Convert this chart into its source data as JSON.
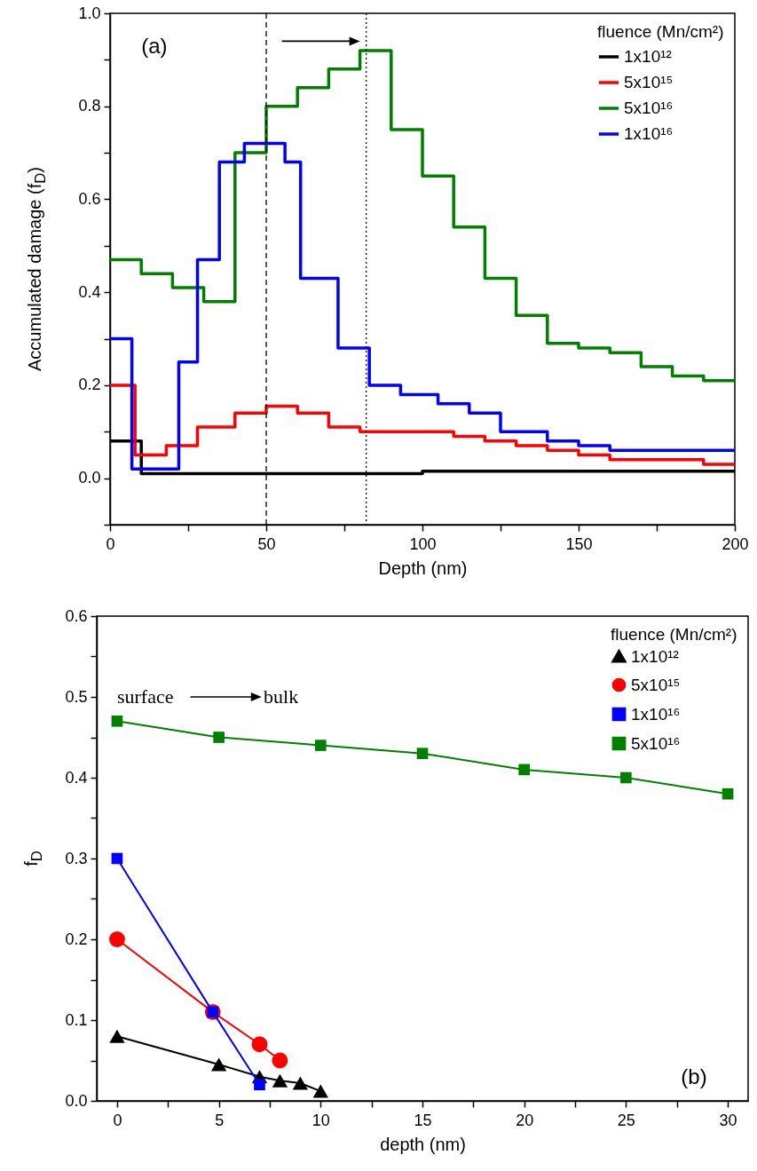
{
  "chart_data": [
    {
      "type": "step",
      "xlabel": "Depth (nm)",
      "ylabel": "Accumulated damage (f$_{D}$)",
      "legend_title": "fluence (Mn/cm²)",
      "legend": "top right",
      "xlim": [
        0,
        200
      ],
      "xticks": [
        0,
        {
          "value": 25,
          "label": null
        },
        50,
        {
          "value": 75,
          "label": null
        },
        100,
        {
          "value": 125,
          "label": null
        },
        150,
        {
          "value": 175,
          "label": null
        },
        200
      ],
      "ylim": [
        -0.1,
        1.0
      ],
      "yticks": [
        {
          "value": -0.1,
          "label": null
        },
        {
          "value": 0,
          "label": "0.0"
        },
        {
          "value": 0.1,
          "label": null
        },
        0.2,
        {
          "value": 0.3,
          "label": null
        },
        0.4,
        {
          "value": 0.5,
          "label": null
        },
        0.6,
        {
          "value": 0.7,
          "label": null
        },
        0.8,
        {
          "value": 0.9,
          "label": null
        },
        {
          "value": 1,
          "label": "1.0"
        }
      ],
      "series": [
        {
          "name": "1x10¹²",
          "color": "#000000",
          "x": [
            0,
            10,
            100,
            200
          ],
          "values": [
            0.08,
            0.01,
            0.015,
            0.015
          ]
        },
        {
          "name": "5x10¹⁵",
          "color": "#ff0000",
          "x": [
            0,
            8,
            18,
            28,
            40,
            50,
            60,
            70,
            80,
            110,
            120,
            130,
            140,
            150,
            160,
            190,
            200
          ],
          "values": [
            0.2,
            0.05,
            0.07,
            0.11,
            0.14,
            0.155,
            0.14,
            0.11,
            0.1,
            0.09,
            0.08,
            0.07,
            0.06,
            0.05,
            0.04,
            0.03,
            0.03
          ]
        },
        {
          "name": "5x10¹⁶",
          "color": "#008000",
          "x": [
            0,
            10,
            20,
            30,
            40,
            50,
            60,
            70,
            80,
            90,
            100,
            110,
            120,
            130,
            140,
            150,
            160,
            170,
            180,
            190,
            200
          ],
          "values": [
            0.47,
            0.44,
            0.41,
            0.38,
            0.7,
            0.8,
            0.84,
            0.88,
            0.92,
            0.75,
            0.65,
            0.54,
            0.43,
            0.35,
            0.29,
            0.28,
            0.27,
            0.24,
            0.22,
            0.21,
            0.21
          ]
        },
        {
          "name": "1x10¹⁶",
          "color": "#0000ff",
          "x": [
            0,
            7,
            22,
            28,
            35,
            43,
            56,
            61,
            73,
            83,
            93,
            105,
            115,
            125,
            140,
            150,
            160,
            200
          ],
          "values": [
            0.3,
            0.02,
            0.25,
            0.47,
            0.68,
            0.72,
            0.68,
            0.43,
            0.28,
            0.2,
            0.18,
            0.16,
            0.14,
            0.1,
            0.08,
            0.07,
            0.06,
            0.06
          ]
        }
      ],
      "ref_lines": [
        {
          "axis": "x",
          "value": 50,
          "line_style": "dashed",
          "color": "#000000"
        },
        {
          "axis": "x",
          "value": 82,
          "line_style": "dotted",
          "color": "#000000"
        }
      ],
      "annotations": [
        "(a)"
      ]
    },
    {
      "type": "line",
      "xlabel": "depth (nm)",
      "ylabel": "f$_{D}$",
      "legend_title": "fluence (Mn/cm²)",
      "legend": "top right",
      "xlim": [
        -1,
        31
      ],
      "xticks": [
        0,
        {
          "value": 2.5,
          "label": null
        },
        5,
        {
          "value": 7.5,
          "label": null
        },
        10,
        {
          "value": 12.5,
          "label": null
        },
        15,
        {
          "value": 17.5,
          "label": null
        },
        20,
        {
          "value": 22.5,
          "label": null
        },
        25,
        {
          "value": 27.5,
          "label": null
        },
        30
      ],
      "ylim": [
        0,
        0.6
      ],
      "yticks": [
        {
          "value": 0,
          "label": "0.0"
        },
        {
          "value": 0.05,
          "label": null
        },
        0.1,
        {
          "value": 0.15,
          "label": null
        },
        0.2,
        {
          "value": 0.25,
          "label": null
        },
        0.3,
        {
          "value": 0.35,
          "label": null
        },
        0.4,
        {
          "value": 0.45,
          "label": null
        },
        0.5,
        {
          "value": 0.55,
          "label": null
        },
        0.6
      ],
      "series": [
        {
          "name": "1x10¹²",
          "color": "#000000",
          "marker": "triangle",
          "x": [
            0,
            5,
            7,
            8,
            9,
            10
          ],
          "values": [
            0.08,
            0.045,
            0.03,
            0.025,
            0.022,
            0.012
          ]
        },
        {
          "name": "5x10¹⁵",
          "color": "#ff0000",
          "marker": "circle",
          "x": [
            0,
            4.7,
            7,
            8
          ],
          "values": [
            0.2,
            0.11,
            0.07,
            0.05
          ]
        },
        {
          "name": "1x10¹⁶",
          "color": "#0000ff",
          "marker": "square",
          "x": [
            0,
            4.7,
            7
          ],
          "values": [
            0.3,
            0.11,
            0.02
          ]
        },
        {
          "name": "5x10¹⁶",
          "color": "#008000",
          "marker": "square",
          "x": [
            0,
            5,
            10,
            15,
            20,
            25,
            30
          ],
          "values": [
            0.47,
            0.45,
            0.44,
            0.43,
            0.41,
            0.4,
            0.38
          ]
        }
      ],
      "annotations": [
        "surface",
        "bulk",
        "(b)"
      ]
    }
  ]
}
